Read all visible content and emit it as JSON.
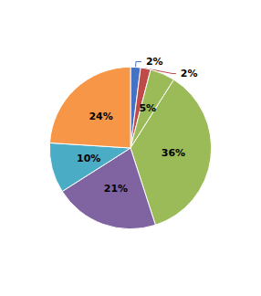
{
  "chart_data": {
    "type": "pie",
    "values": [
      2,
      2,
      5,
      36,
      21,
      10,
      24
    ],
    "value_labels": [
      "2%",
      "2%",
      "5%",
      "36%",
      "21%",
      "10%",
      "24%"
    ],
    "colors": [
      "#4472C4",
      "#BE4B48",
      "#9BBB59",
      "#9BBB59",
      "#8064A2",
      "#4BACC6",
      "#F79646"
    ],
    "data_labels": true
  }
}
